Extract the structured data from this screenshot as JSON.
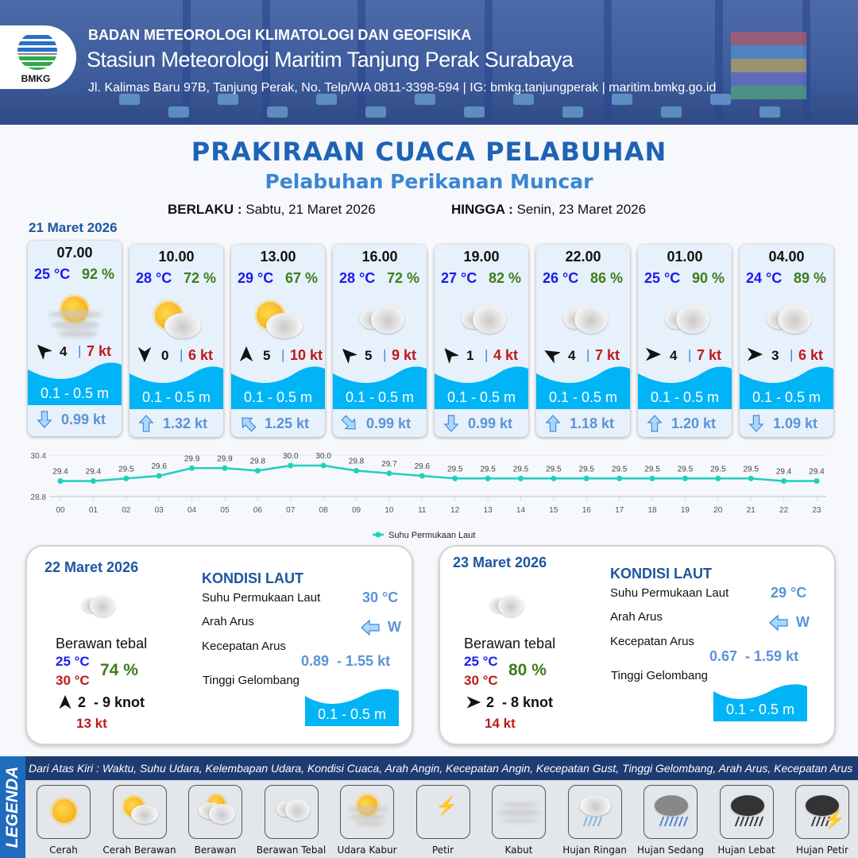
{
  "header": {
    "agency": "BADAN METEOROLOGI KLIMATOLOGI DAN GEOFISIKA",
    "station": "Stasiun Meteorologi Maritim Tanjung Perak Surabaya",
    "contact": "Jl. Kalimas Baru 97B, Tanjung Perak, No. Telp/WA 0811-3398-594 | IG: bmkg.tanjungperak | maritim.bmkg.go.id",
    "logo_text": "BMKG"
  },
  "title": "PRAKIRAAN CUACA PELABUHAN",
  "subtitle": "Pelabuhan Perikanan Muncar",
  "validity": {
    "from_label": "BERLAKU :",
    "from_value": "Sabtu, 21 Maret 2026",
    "to_label": "HINGGA :",
    "to_value": "Senin, 23 Maret 2026"
  },
  "day1": {
    "date": "21 Maret 2026",
    "cards": [
      {
        "time": "07.00",
        "temp": "25 °C",
        "humidity": "92 %",
        "weather": "udara-kabur",
        "wind_dir_deg": -45,
        "wind_speed": "4",
        "gust": "7 kt",
        "wave": "0.1 - 0.5 m",
        "current_dir_deg": 180,
        "current_speed": "0.99 kt"
      },
      {
        "time": "10.00",
        "temp": "28 °C",
        "humidity": "72 %",
        "weather": "cerah-berawan",
        "wind_dir_deg": 180,
        "wind_speed": "0",
        "gust": "6 kt",
        "wave": "0.1 - 0.5 m",
        "current_dir_deg": 0,
        "current_speed": "1.32 kt"
      },
      {
        "time": "13.00",
        "temp": "29 °C",
        "humidity": "67 %",
        "weather": "cerah-berawan",
        "wind_dir_deg": 0,
        "wind_speed": "5",
        "gust": "10 kt",
        "wave": "0.1 - 0.5 m",
        "current_dir_deg": -45,
        "current_speed": "1.25 kt"
      },
      {
        "time": "16.00",
        "temp": "28 °C",
        "humidity": "72 %",
        "weather": "berawan-tebal",
        "wind_dir_deg": -45,
        "wind_speed": "5",
        "gust": "9 kt",
        "wave": "0.1 - 0.5 m",
        "current_dir_deg": 135,
        "current_speed": "0.99 kt"
      },
      {
        "time": "19.00",
        "temp": "27 °C",
        "humidity": "82 %",
        "weather": "berawan-tebal",
        "wind_dir_deg": -40,
        "wind_speed": "1",
        "gust": "4 kt",
        "wave": "0.1 - 0.5 m",
        "current_dir_deg": 180,
        "current_speed": "0.99 kt"
      },
      {
        "time": "22.00",
        "temp": "26 °C",
        "humidity": "86 %",
        "weather": "berawan-tebal",
        "wind_dir_deg": -60,
        "wind_speed": "4",
        "gust": "7 kt",
        "wave": "0.1 - 0.5 m",
        "current_dir_deg": 0,
        "current_speed": "1.18 kt"
      },
      {
        "time": "01.00",
        "temp": "25 °C",
        "humidity": "90 %",
        "weather": "berawan-tebal",
        "wind_dir_deg": 90,
        "wind_speed": "4",
        "gust": "7 kt",
        "wave": "0.1 - 0.5 m",
        "current_dir_deg": 0,
        "current_speed": "1.20 kt"
      },
      {
        "time": "04.00",
        "temp": "24 °C",
        "humidity": "89 %",
        "weather": "berawan-tebal",
        "wind_dir_deg": 90,
        "wind_speed": "3",
        "gust": "6 kt",
        "wave": "0.1 - 0.5 m",
        "current_dir_deg": 180,
        "current_speed": "1.09 kt"
      }
    ]
  },
  "chart_data": {
    "type": "line",
    "x": [
      "00",
      "01",
      "02",
      "03",
      "04",
      "05",
      "06",
      "07",
      "08",
      "09",
      "10",
      "11",
      "12",
      "13",
      "14",
      "15",
      "16",
      "17",
      "18",
      "19",
      "20",
      "21",
      "22",
      "23"
    ],
    "series": [
      {
        "name": "Suhu Permukaan Laut",
        "values": [
          29.4,
          29.4,
          29.5,
          29.6,
          29.9,
          29.9,
          29.8,
          30.0,
          30.0,
          29.8,
          29.7,
          29.6,
          29.5,
          29.5,
          29.5,
          29.5,
          29.5,
          29.5,
          29.5,
          29.5,
          29.5,
          29.5,
          29.4,
          29.4
        ],
        "color": "#1fcfbd"
      }
    ],
    "ylim": [
      28.8,
      30.4
    ],
    "yticks": [
      "30.4",
      "28.8"
    ],
    "legend": "bottom",
    "grid": true
  },
  "days": [
    {
      "date": "22 Maret 2026",
      "weather": "berawan-tebal",
      "condition": "Berawan tebal",
      "tmin": "25 °C",
      "tmax": "30 °C",
      "humidity": "74 %",
      "wind_dir_deg": 0,
      "wind": "2  - 9 knot",
      "gust": "13 kt",
      "sea": {
        "title": "KONDISI LAUT",
        "sst_label": "Suhu Permukaan Laut",
        "sst": "30 °C",
        "dir_label": "Arah Arus",
        "dir": "W",
        "speed_label": "Kecepatan Arus",
        "speed": "0.89  - 1.55 kt",
        "wave_label": "Tinggi Gelombang",
        "wave": "0.1 - 0.5 m"
      }
    },
    {
      "date": "23 Maret 2026",
      "weather": "berawan-tebal",
      "condition": "Berawan tebal",
      "tmin": "25 °C",
      "tmax": "30 °C",
      "humidity": "80 %",
      "wind_dir_deg": 90,
      "wind": "2  - 8 knot",
      "gust": "14 kt",
      "sea": {
        "title": "KONDISI LAUT",
        "sst_label": "Suhu Permukaan Laut",
        "sst": "29 °C",
        "dir_label": "Arah Arus",
        "dir": "W",
        "speed_label": "Kecepatan Arus",
        "speed": "0.67  - 1.59 kt",
        "wave_label": "Tinggi Gelombang",
        "wave": "0.1 - 0.5 m"
      }
    }
  ],
  "legend": {
    "side": "LEGENDA",
    "description": "Dari Atas Kiri : Waktu, Suhu Udara, Kelembapan Udara, Kondisi Cuaca, Arah Angin, Kecepatan Angin, Kecepatan Gust, Tinggi Gelombang, Arah Arus, Kecepatan Arus",
    "items": [
      {
        "label": "Cerah",
        "icon": "cerah"
      },
      {
        "label": "Cerah Berawan",
        "icon": "cerah-berawan"
      },
      {
        "label": "Berawan",
        "icon": "berawan"
      },
      {
        "label": "Berawan Tebal",
        "icon": "berawan-tebal"
      },
      {
        "label": "Udara Kabur",
        "icon": "udara-kabur"
      },
      {
        "label": "Petir",
        "icon": "petir"
      },
      {
        "label": "Kabut",
        "icon": "kabut"
      },
      {
        "label": "Hujan Ringan",
        "icon": "hujan-ringan"
      },
      {
        "label": "Hujan Sedang",
        "icon": "hujan-sedang"
      },
      {
        "label": "Hujan Lebat",
        "icon": "hujan-lebat"
      },
      {
        "label": "Hujan Petir",
        "icon": "hujan-petir"
      }
    ]
  },
  "colors": {
    "wave": "#00b4f5",
    "sst_line": "#1fcfbd",
    "title": "#1e63b5",
    "navy": "#1d3c72"
  }
}
